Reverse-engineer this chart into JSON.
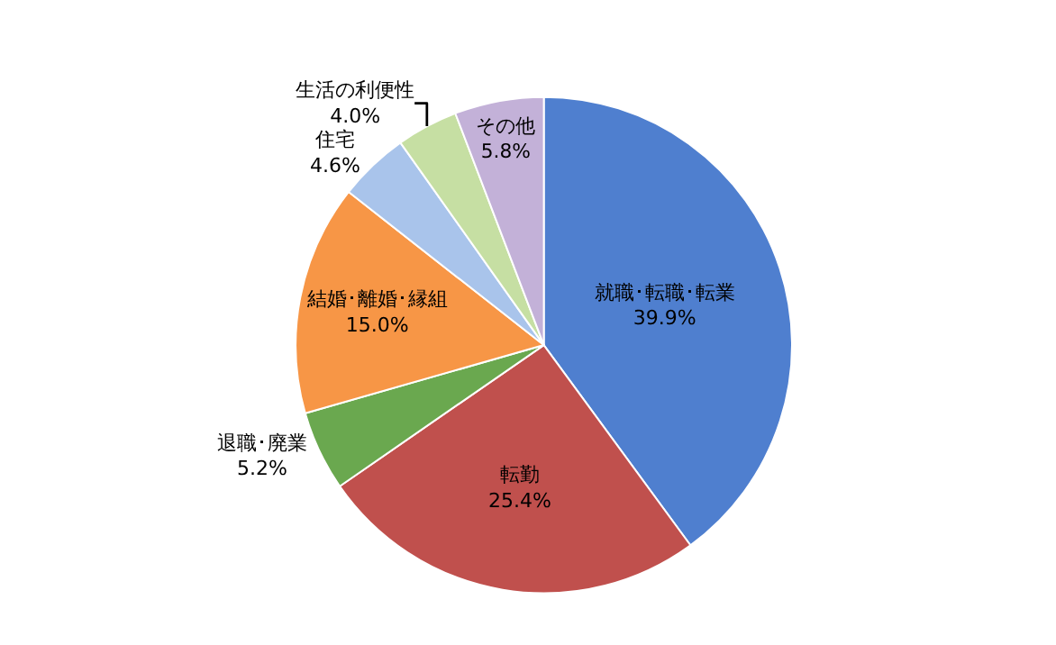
{
  "chart_data": {
    "type": "pie",
    "categories": [
      "就職･転職･転業",
      "転勤",
      "退職･廃業",
      "結婚･離婚･縁組",
      "住宅",
      "生活の利便性",
      "その他"
    ],
    "values": [
      39.9,
      25.4,
      5.2,
      15.0,
      4.6,
      4.0,
      5.8
    ],
    "value_labels": [
      "39.9%",
      "25.4%",
      "5.2%",
      "15.0%",
      "4.6%",
      "4.0%",
      "5.8%"
    ],
    "colors": [
      "#4f7fcf",
      "#c0504d",
      "#6aa84f",
      "#f79646",
      "#a9c4eb",
      "#c6dfa3",
      "#c3b1d8"
    ],
    "legend": false
  }
}
